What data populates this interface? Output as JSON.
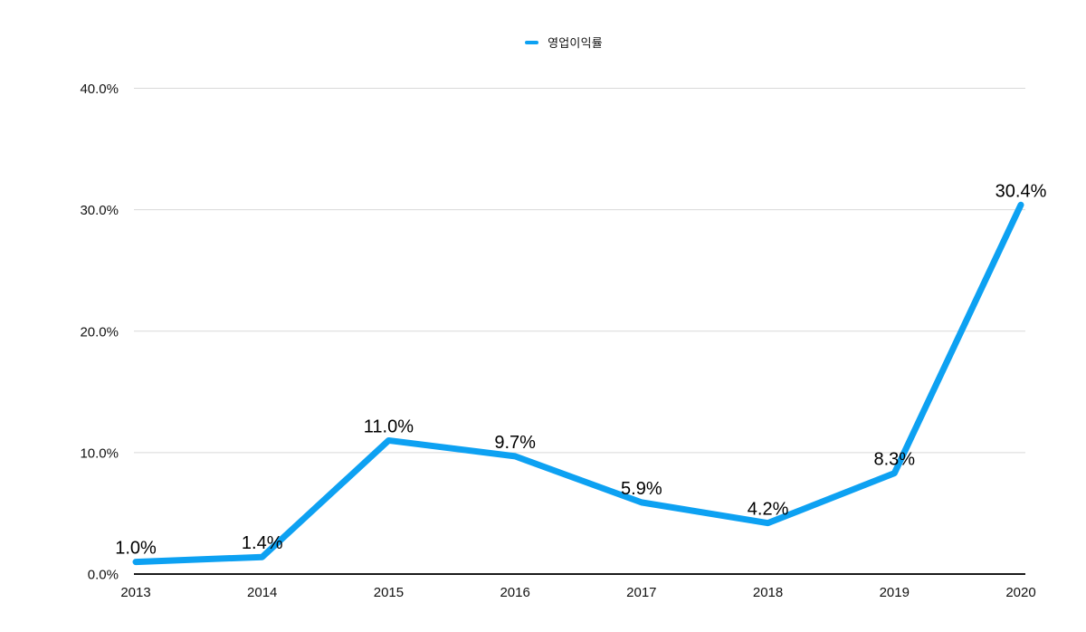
{
  "chart_data": {
    "type": "line",
    "title": "",
    "categories": [
      "2013",
      "2014",
      "2015",
      "2016",
      "2017",
      "2018",
      "2019",
      "2020"
    ],
    "series": [
      {
        "name": "영업이익률",
        "color": "#0da1f2",
        "values": [
          1.0,
          1.4,
          11.0,
          9.7,
          5.9,
          4.2,
          8.3,
          30.4
        ]
      }
    ],
    "data_labels": [
      "1.0%",
      "1.4%",
      "11.0%",
      "9.7%",
      "5.9%",
      "4.2%",
      "8.3%",
      "30.4%"
    ],
    "y_ticks": [
      "0.0%",
      "10.0%",
      "20.0%",
      "30.0%",
      "40.0%"
    ],
    "ylim": [
      0,
      40
    ],
    "xlabel": "",
    "ylabel": "",
    "grid": true,
    "legend_position": "top-center",
    "colors": {
      "line": "#0da1f2",
      "grid": "#d9d9d9",
      "axis": "#1b1b1b",
      "text": "#111111"
    }
  }
}
